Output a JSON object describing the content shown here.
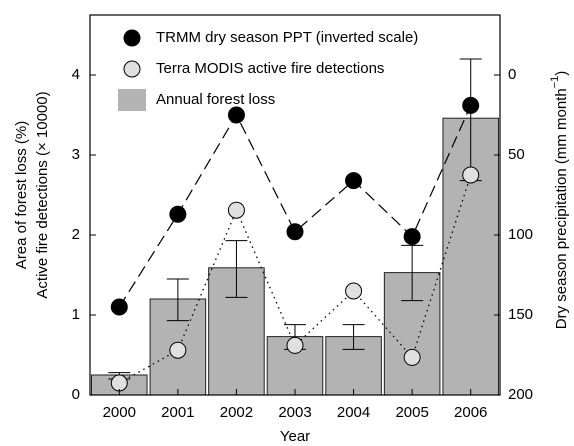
{
  "chart_data": {
    "type": "bar",
    "xlabel": "Year",
    "ylabel": [
      "Area of forest loss (%)",
      "Active fire detections (× 10000)"
    ],
    "y2label": {
      "text": "Dry season precipitation (mm month",
      "sup": "−1",
      "end": ")"
    },
    "categories": [
      "2000",
      "2001",
      "2002",
      "2003",
      "2004",
      "2005",
      "2006"
    ],
    "ylim": [
      0,
      4.75
    ],
    "yticks": [
      0,
      1,
      2,
      3,
      4
    ],
    "y2lim": [
      200,
      -37.5
    ],
    "y2ticks": [
      0,
      50,
      100,
      150,
      200
    ],
    "legend": "top",
    "series": [
      {
        "name": "TRMM dry season PPT (inverted scale)",
        "type": "line",
        "axis": "y2",
        "color": "#000000",
        "line": "dashed",
        "values": [
          145,
          87,
          25,
          98,
          66,
          101,
          19
        ]
      },
      {
        "name": "Terra MODIS active fire detections",
        "type": "line",
        "color": "#e0e0e0",
        "line": "dotted",
        "values": [
          0.15,
          0.56,
          2.31,
          0.62,
          1.3,
          0.47,
          2.75
        ]
      },
      {
        "name": "Annual forest loss",
        "type": "bar",
        "color": "#b3b3b3",
        "values": [
          0.25,
          1.2,
          1.59,
          0.73,
          0.73,
          1.53,
          3.46
        ],
        "error_low": [
          0.2,
          0.93,
          1.22,
          0.57,
          0.57,
          1.18,
          2.68
        ],
        "error_high": [
          0.28,
          1.45,
          1.93,
          0.88,
          0.88,
          1.87,
          4.2
        ]
      }
    ]
  }
}
